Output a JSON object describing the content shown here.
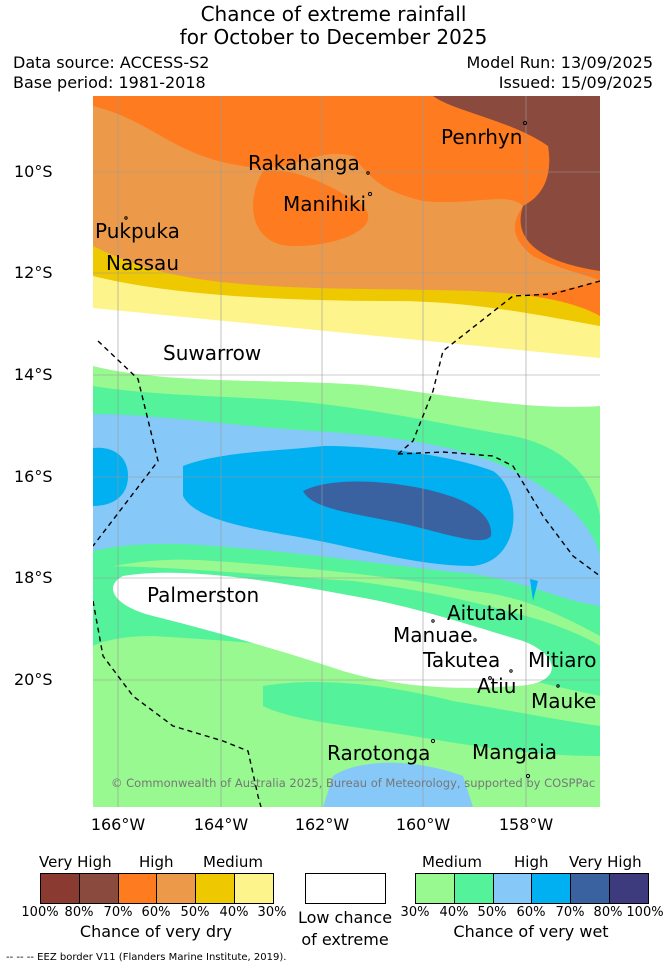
{
  "title_line1": "Chance of extreme rainfall",
  "title_line2": "for October to December 2025",
  "data_source": "Data source: ACCESS-S2",
  "base_period": "Base period: 1981-2018",
  "model_run": "Model Run: 13/09/2025",
  "issued": "Issued: 15/09/2025",
  "lat_labels": [
    "10°S",
    "12°S",
    "14°S",
    "16°S",
    "18°S",
    "20°S"
  ],
  "lon_labels": [
    "166°W",
    "164°W",
    "162°W",
    "160°W",
    "158°W"
  ],
  "places": [
    "Penrhyn",
    "Rakahanga",
    "Manihiki",
    "Pukpuka",
    "Nassau",
    "Suwarrow",
    "Palmerston",
    "Aitutaki",
    "Manuae",
    "Takutea",
    "Mitiaro",
    "Atiu",
    "Mauke",
    "Rarotonga",
    "Mangaia"
  ],
  "copyright": "© Commonwealth of Australia 2025, Bureau of Meteorology, supported by COSPPac",
  "legend": {
    "dry_heads": [
      "Very High",
      "High",
      "Medium"
    ],
    "dry_pcts": [
      "100%",
      "80%",
      "70%",
      "60%",
      "50%",
      "40%",
      "30%"
    ],
    "dry_caption": "Chance of very dry",
    "low_caption_1": "Low chance",
    "low_caption_2": "of extreme",
    "wet_heads": [
      "Medium",
      "High",
      "Very High"
    ],
    "wet_pcts": [
      "30%",
      "40%",
      "50%",
      "60%",
      "70%",
      "80%",
      "100%"
    ],
    "wet_caption": "Chance of very wet",
    "dry_colors": [
      "#8b3a32",
      "#8a4b3e",
      "#fe7b20",
      "#ec9a4a",
      "#eec800",
      "#fdf48c"
    ],
    "low_color": "#ffffff",
    "wet_colors": [
      "#98f990",
      "#54f29a",
      "#86c8f8",
      "#00b0f0",
      "#3a62a0",
      "#3d3b7e"
    ]
  },
  "footnote": "--  --  -- EEZ border V11 (Flanders Marine Institute, 2019)."
}
